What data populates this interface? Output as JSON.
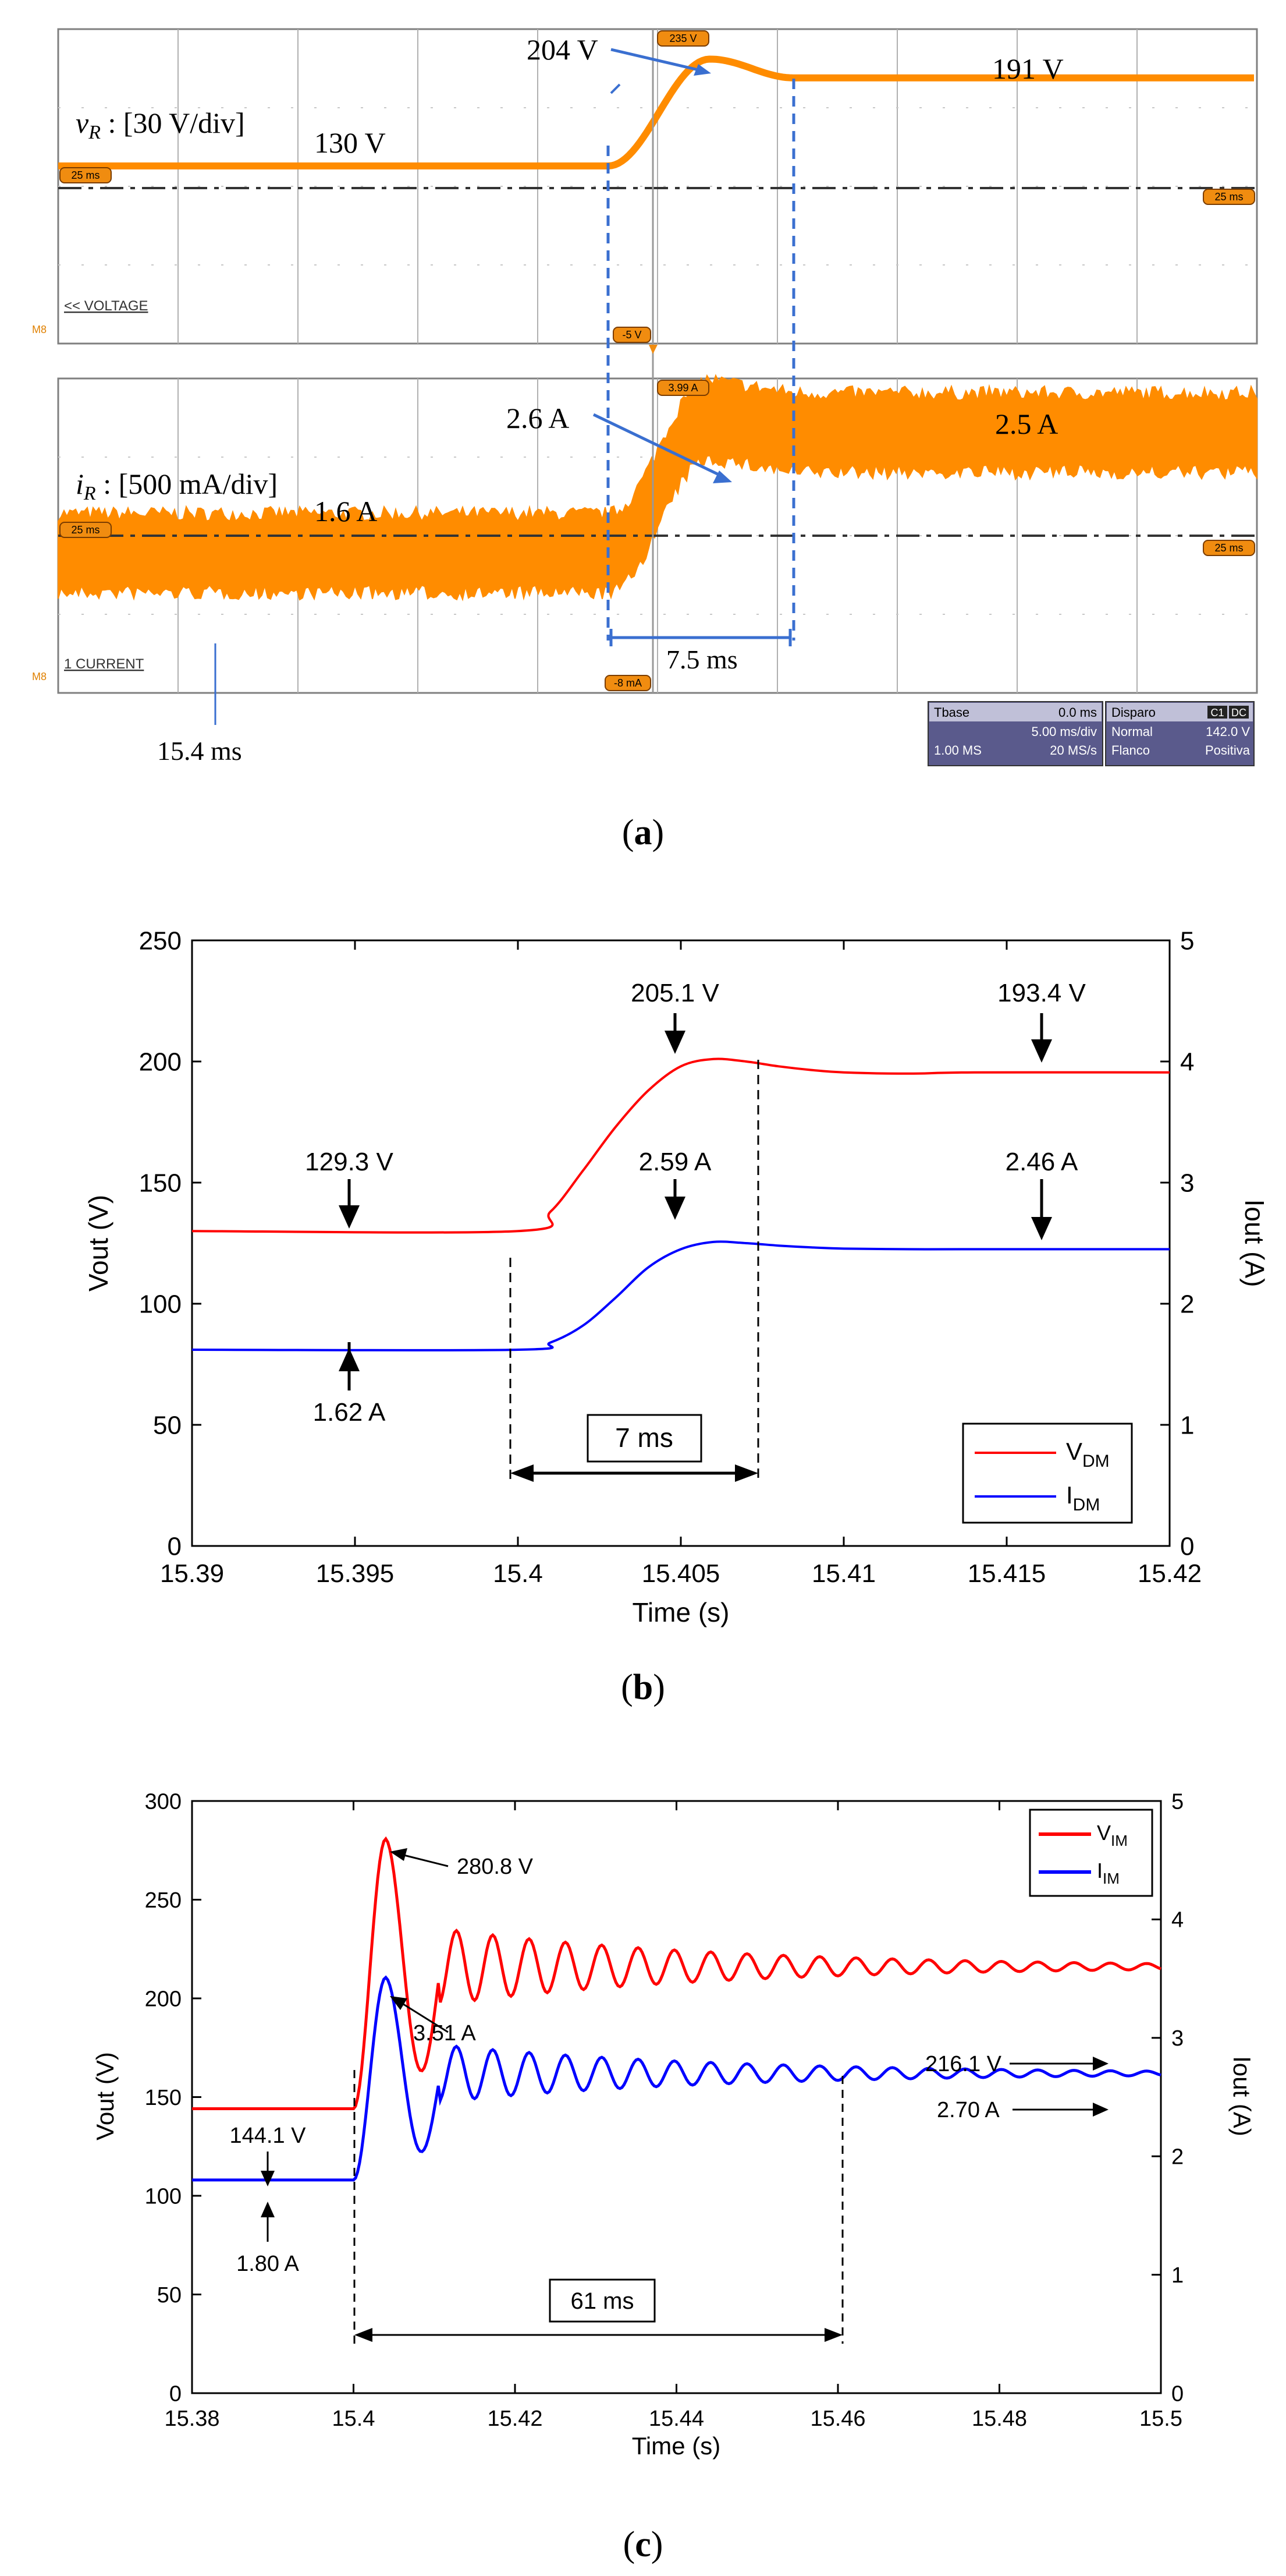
{
  "figure": {
    "panel_labels": [
      "(a)",
      "(b)",
      "(c)"
    ],
    "colors": {
      "scope_trace": "#ff8c00",
      "scope_badge": "#f08c10",
      "scope_grid": "#7f7f7f",
      "scope_panel": "#5a5a8c",
      "vdm": "#ff0000",
      "idm": "#0000ff",
      "annotation_blue": "#3a6fd0",
      "axis": "#000000"
    }
  },
  "chart_data": [
    {
      "type": "line",
      "title": "Oscilloscope capture",
      "x_divisions": 10,
      "time_per_div_ms": 5,
      "channels": [
        {
          "name": "VOLTAGE",
          "ylabel_symbol": "v",
          "ylabel_sub": "R",
          "ylabel_rest": " : [30 V/div]",
          "pre_level_V": 130,
          "peak_V": 204,
          "final_V": 191,
          "labels": [
            "130 V",
            "204 V",
            "191 V"
          ],
          "badges": [
            "25 ms",
            "235 V",
            "25 ms",
            "-5 V"
          ],
          "marker": "<< VOLTAGE",
          "side_mark": "M8"
        },
        {
          "name": "CURRENT",
          "ylabel_symbol": "i",
          "ylabel_sub": "R",
          "ylabel_rest": " : [500 mA/div]",
          "pre_level_A": 1.6,
          "peak_A": 2.6,
          "final_A": 2.5,
          "labels": [
            "1.6 A",
            "2.6 A",
            "2.5 A"
          ],
          "badges": [
            "25 ms",
            "3.99 A",
            "25 ms",
            "-8 mA"
          ],
          "marker": "1 CURRENT",
          "side_mark": "M8"
        }
      ],
      "annotations": [
        "7.5 ms",
        "15.4 ms"
      ],
      "info_box": {
        "tbase_label": "Tbase",
        "tbase_value": "0.0 ms",
        "div_value": "5.00 ms/div",
        "samples": "1.00 MS",
        "rate": "20 MS/s",
        "trig_label": "Disparo",
        "trig_ch1": "C1",
        "trig_ch2": "DC",
        "mode": "Normal",
        "level": "142.0 V",
        "edge_label": "Flanco",
        "edge_value": "Positiva"
      }
    },
    {
      "type": "line",
      "title": "",
      "xlabel": "Time (s)",
      "ylabel": "Vout (V)",
      "ylabel_right": "Iout (A)",
      "xlim": [
        15.39,
        15.42
      ],
      "ylim": [
        0,
        250
      ],
      "ylim_right": [
        0,
        5
      ],
      "xticks": [
        "15.39",
        "15.395",
        "15.4",
        "15.405",
        "15.41",
        "15.415",
        "15.42"
      ],
      "yticks": [
        "0",
        "50",
        "100",
        "150",
        "200",
        "250"
      ],
      "yticks_right": [
        "0",
        "1",
        "2",
        "3",
        "4",
        "5"
      ],
      "series": [
        {
          "name": "V",
          "sub": "DM",
          "axis": "left",
          "color": "#ff0000",
          "x": [
            15.39,
            15.4,
            15.401,
            15.402,
            15.403,
            15.404,
            15.405,
            15.406,
            15.407,
            15.408,
            15.409,
            15.41,
            15.412,
            15.414,
            15.42
          ],
          "y": [
            130,
            130,
            138,
            155,
            173,
            188,
            198,
            201,
            200,
            198,
            196.5,
            195.5,
            195,
            195.5,
            195.5
          ]
        },
        {
          "name": "I",
          "sub": "DM",
          "axis": "right",
          "color": "#0000ff",
          "x": [
            15.39,
            15.4,
            15.401,
            15.402,
            15.403,
            15.404,
            15.405,
            15.406,
            15.407,
            15.408,
            15.409,
            15.41,
            15.412,
            15.414,
            15.42
          ],
          "y": [
            1.62,
            1.62,
            1.68,
            1.82,
            2.05,
            2.3,
            2.45,
            2.51,
            2.5,
            2.48,
            2.465,
            2.455,
            2.45,
            2.45,
            2.45
          ]
        }
      ],
      "annotations": [
        "129.3 V",
        "1.62 A",
        "205.1 V",
        "2.59 A",
        "193.4 V",
        "2.46 A",
        "7 ms"
      ],
      "legend": "bottom-right"
    },
    {
      "type": "line",
      "title": "",
      "xlabel": "Time (s)",
      "ylabel": "Vout (V)",
      "ylabel_right": "Iout (A)",
      "xlim": [
        15.38,
        15.5
      ],
      "ylim": [
        0,
        300
      ],
      "ylim_right": [
        0,
        5
      ],
      "xticks": [
        "15.38",
        "15.4",
        "15.42",
        "15.44",
        "15.46",
        "15.48",
        "15.5"
      ],
      "yticks": [
        "0",
        "50",
        "100",
        "150",
        "200",
        "250",
        "300"
      ],
      "yticks_right": [
        "0",
        "1",
        "2",
        "3",
        "4",
        "5"
      ],
      "series": [
        {
          "name": "V",
          "sub": "IM",
          "axis": "left",
          "color": "#ff0000",
          "pre": 144.1,
          "start": 15.4,
          "peak": 280.8,
          "peak_t": 15.404,
          "final": 216.1,
          "osc_period": 0.0045
        },
        {
          "name": "I",
          "sub": "IM",
          "axis": "right",
          "color": "#0000ff",
          "pre": 1.8,
          "start": 15.4,
          "peak": 3.51,
          "peak_t": 15.404,
          "final": 2.7,
          "osc_period": 0.0045
        }
      ],
      "annotations": [
        "280.8 V",
        "3.51 A",
        "144.1 V",
        "1.80 A",
        "216.1 V",
        "2.70 A",
        "61 ms"
      ],
      "legend": "top-right"
    }
  ]
}
